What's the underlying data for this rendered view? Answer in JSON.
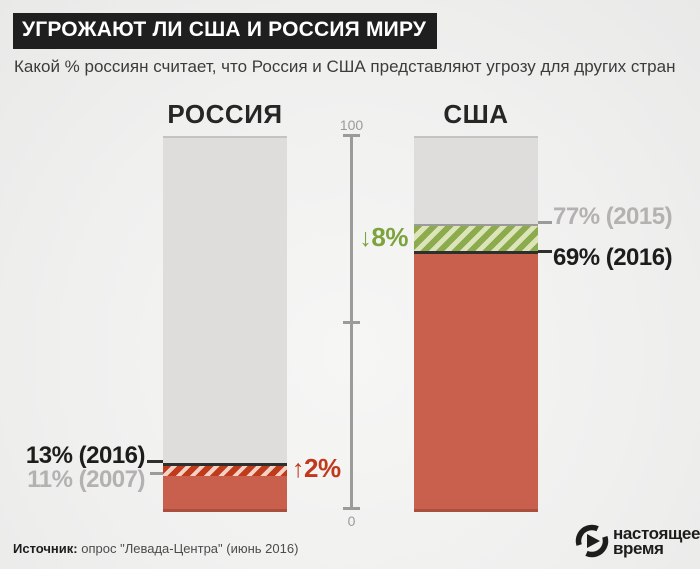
{
  "title": "УГРОЖАЮТ ЛИ США И РОССИЯ  МИРУ",
  "subtitle": "Какой % россиян считает, что Россия и США  представляют угрозу для других стран",
  "axis": {
    "top_label": "100",
    "bottom_label": "0"
  },
  "columns": {
    "russia": {
      "header": "РОССИЯ",
      "label_current": "13% (2016)",
      "label_previous": "11% (2007)",
      "change_arrow": "↑",
      "change_label": "2%"
    },
    "usa": {
      "header": "США",
      "label_previous": "77% (2015)",
      "label_current": "69% (2016)",
      "change_arrow": "↓",
      "change_label": "8%"
    }
  },
  "chart_data": {
    "type": "bar",
    "title": "УГРОЖАЮТ ЛИ США И РОССИЯ МИРУ",
    "subtitle": "Какой % россиян считает, что Россия и США представляют угрозу для других стран",
    "ylim": [
      0,
      100
    ],
    "axis_ticks": [
      0,
      50,
      100
    ],
    "categories": [
      "РОССИЯ",
      "США"
    ],
    "bars": [
      {
        "category": "РОССИЯ",
        "current": {
          "year": "2016",
          "value": 13
        },
        "previous": {
          "year": "2007",
          "value": 11
        },
        "change_percent": 2,
        "direction": "up"
      },
      {
        "category": "США",
        "current": {
          "year": "2016",
          "value": 69
        },
        "previous": {
          "year": "2015",
          "value": 77
        },
        "change_percent": 8,
        "direction": "down"
      }
    ],
    "unit": "%"
  },
  "source": {
    "label": "Источник:",
    "text": " опрос \"Левада-Центра\" (июнь 2016)"
  },
  "logo": {
    "line1": "настоящее",
    "line2": "время"
  },
  "colors": {
    "bar_red": "#c8604d",
    "bar_gray": "#dedddc",
    "red_edge": "#aa4f3d",
    "hatch_red_stripe": "#c03b1c",
    "hatch_red_bg": "#f3d2c5",
    "hatch_green_stripe": "#8bab4d",
    "hatch_green_bg": "#dde4ba",
    "change_up_red": "#c0391b",
    "change_down_green": "#7da33d",
    "label_black": "#1d1d1c",
    "label_gray": "#b3b2b1",
    "line_dark": "#2f2f2e",
    "line_gray": "#9b9b9a",
    "title_bg": "#1f1f1f",
    "title_text": "#ffffff"
  }
}
